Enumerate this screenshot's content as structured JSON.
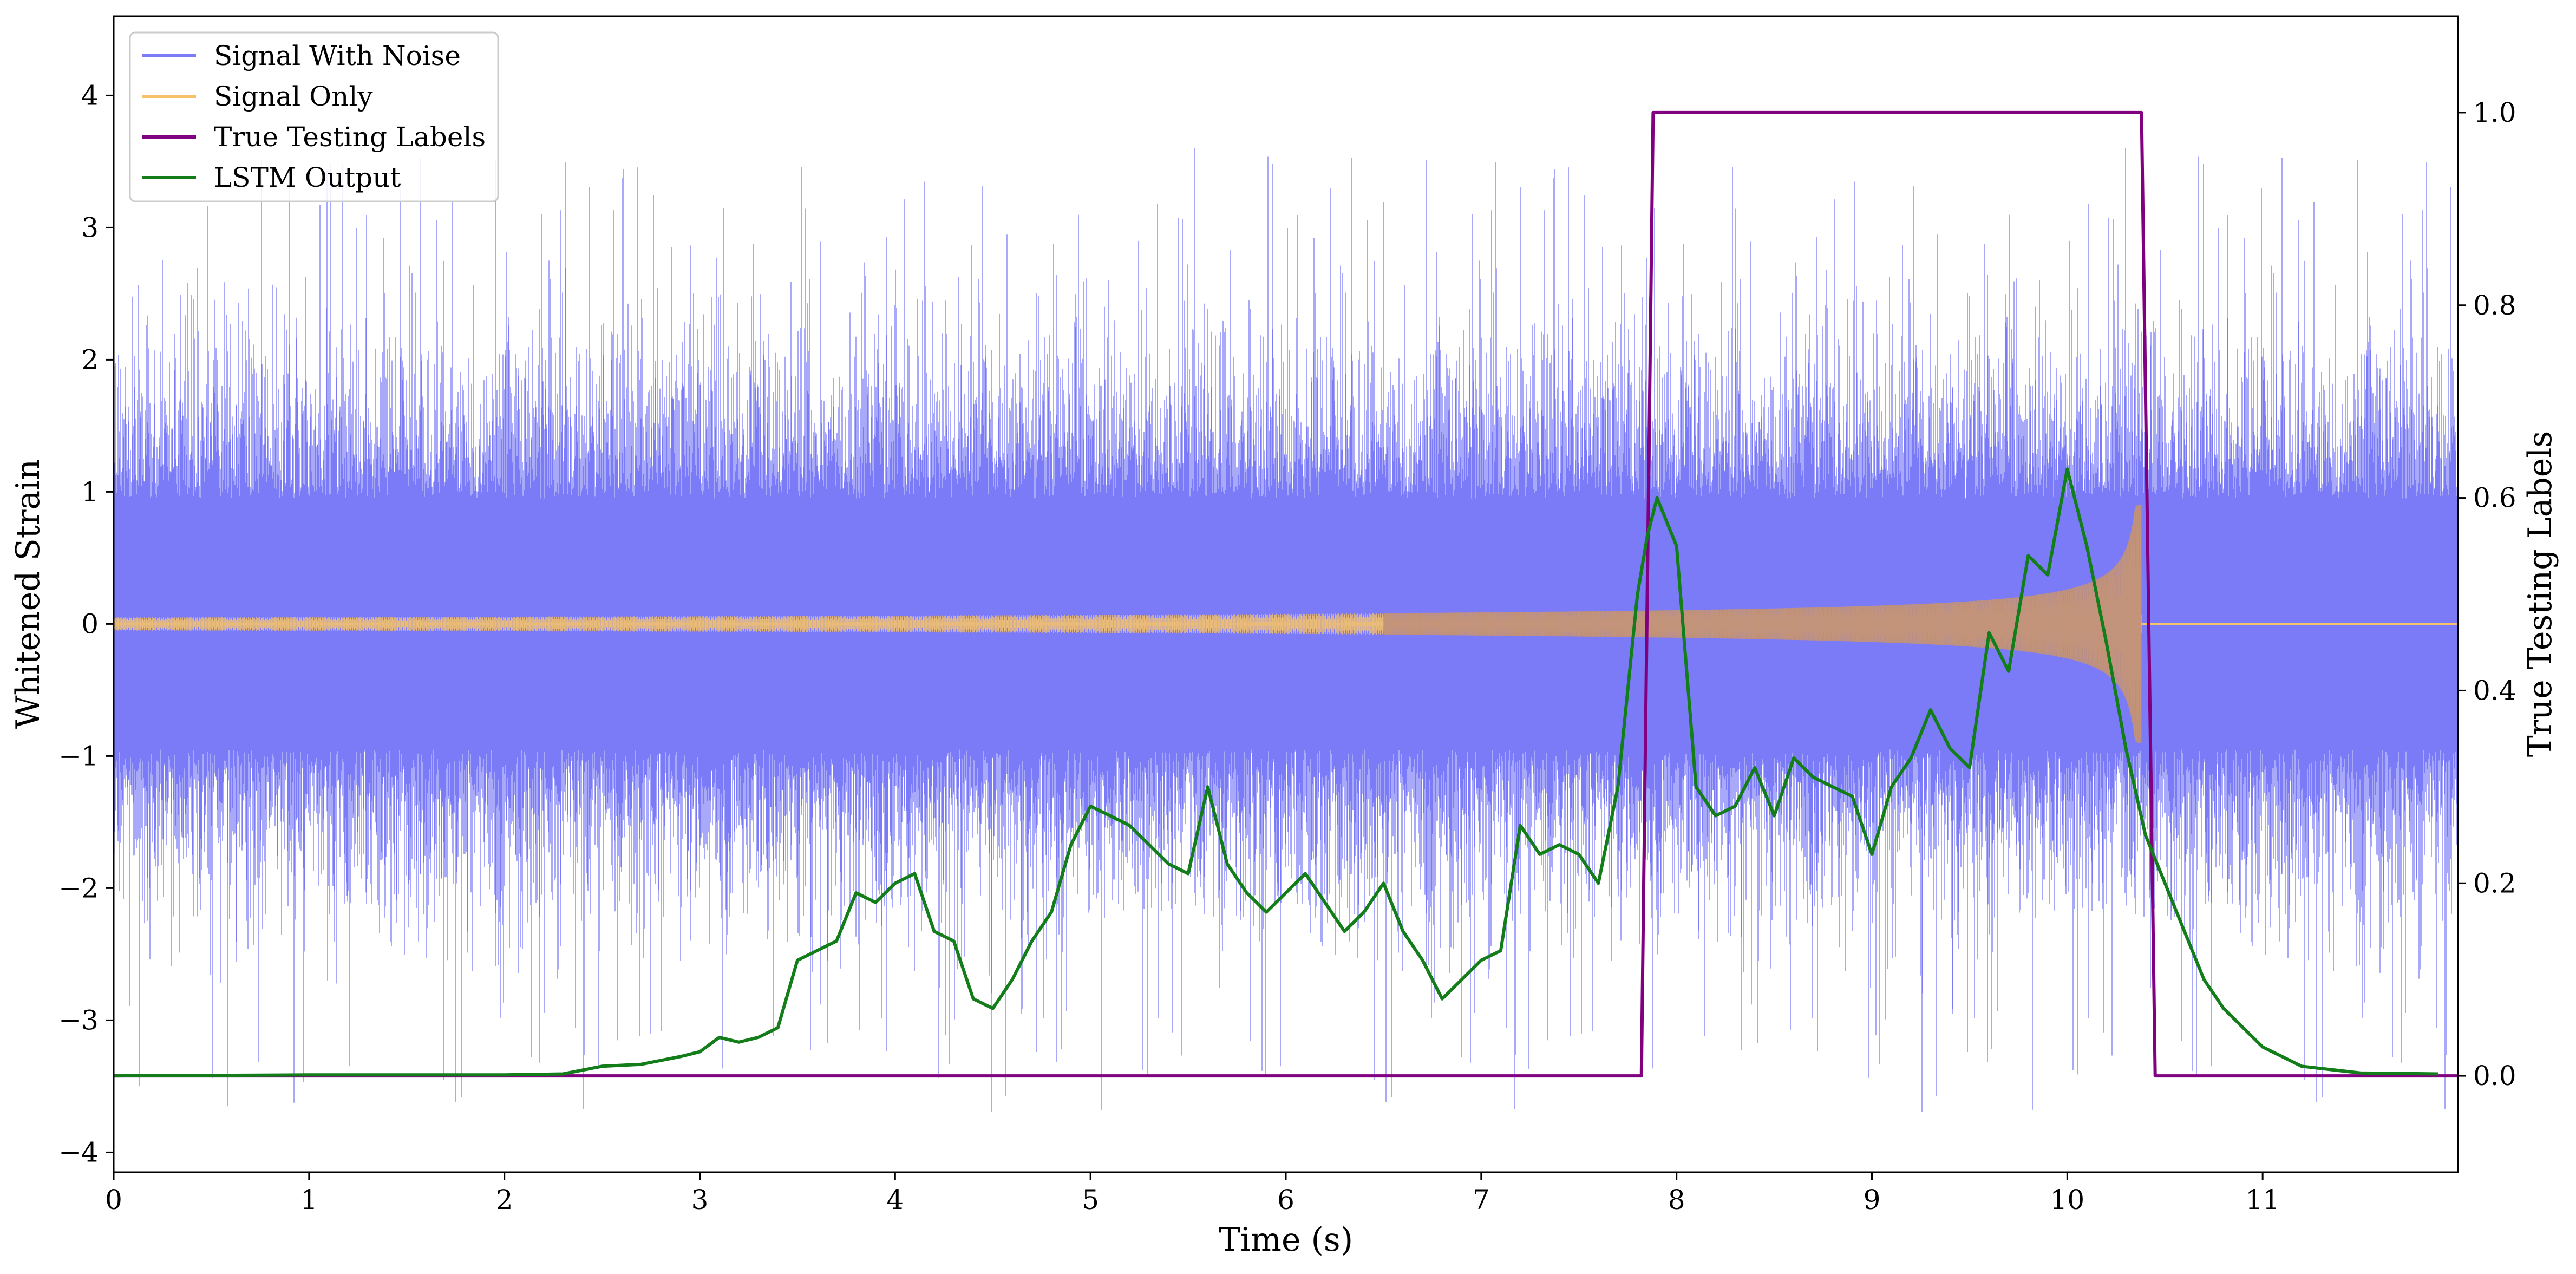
{
  "chart_data": {
    "type": "line",
    "title": "",
    "xlabel": "Time (s)",
    "ylabel": "Whitened Strain",
    "y2label": "True Testing Labels",
    "xlim": [
      0,
      12
    ],
    "ylim": [
      -4.15,
      4.6
    ],
    "y2lim": [
      -0.1,
      1.1
    ],
    "xticks": [
      0,
      1,
      2,
      3,
      4,
      5,
      6,
      7,
      8,
      9,
      10,
      11
    ],
    "yticks": [
      -4,
      -3,
      -2,
      -1,
      0,
      1,
      2,
      3,
      4
    ],
    "y2ticks": [
      0.0,
      0.2,
      0.4,
      0.6,
      0.8,
      1.0
    ],
    "grid": false,
    "legend": "top-left",
    "series": [
      {
        "name": "Signal With Noise",
        "axis": "left",
        "color": "#7b7bf7",
        "approx_envelope": {
          "typical_amplitude": 1.6,
          "spike_max": 3.6,
          "spike_min": -3.7
        }
      },
      {
        "name": "Signal Only",
        "axis": "left",
        "color": "#f5c26b",
        "chirp": {
          "start_time": 0.0,
          "merger_time": 10.38,
          "initial_amplitude": 0.05,
          "peak_amplitude": 0.9
        }
      },
      {
        "name": "True Testing Labels",
        "axis": "right",
        "color": "#800080",
        "x": [
          0,
          7.82,
          7.88,
          10.38,
          10.45,
          12
        ],
        "y": [
          0,
          0,
          1,
          1,
          0,
          0
        ]
      },
      {
        "name": "LSTM Output",
        "axis": "right",
        "color": "#137d1a",
        "x": [
          0,
          1,
          2,
          2.3,
          2.5,
          2.7,
          2.9,
          3.0,
          3.1,
          3.2,
          3.3,
          3.4,
          3.5,
          3.6,
          3.7,
          3.8,
          3.9,
          4.0,
          4.1,
          4.2,
          4.3,
          4.4,
          4.5,
          4.6,
          4.7,
          4.8,
          4.9,
          5.0,
          5.1,
          5.2,
          5.3,
          5.4,
          5.5,
          5.6,
          5.7,
          5.8,
          5.9,
          6.0,
          6.1,
          6.2,
          6.3,
          6.4,
          6.5,
          6.6,
          6.7,
          6.8,
          6.9,
          7.0,
          7.1,
          7.2,
          7.3,
          7.4,
          7.5,
          7.6,
          7.7,
          7.8,
          7.85,
          7.9,
          8.0,
          8.1,
          8.2,
          8.3,
          8.4,
          8.5,
          8.6,
          8.7,
          8.8,
          8.9,
          9.0,
          9.1,
          9.2,
          9.3,
          9.4,
          9.5,
          9.6,
          9.7,
          9.8,
          9.9,
          10.0,
          10.1,
          10.2,
          10.3,
          10.4,
          10.5,
          10.6,
          10.7,
          10.8,
          11.0,
          11.2,
          11.5,
          11.9
        ],
        "y": [
          0.0,
          0.001,
          0.001,
          0.002,
          0.01,
          0.012,
          0.02,
          0.025,
          0.04,
          0.035,
          0.04,
          0.05,
          0.12,
          0.13,
          0.14,
          0.19,
          0.18,
          0.2,
          0.21,
          0.15,
          0.14,
          0.08,
          0.07,
          0.1,
          0.14,
          0.17,
          0.24,
          0.28,
          0.27,
          0.26,
          0.24,
          0.22,
          0.21,
          0.3,
          0.22,
          0.19,
          0.17,
          0.19,
          0.21,
          0.18,
          0.15,
          0.17,
          0.2,
          0.15,
          0.12,
          0.08,
          0.1,
          0.12,
          0.13,
          0.26,
          0.23,
          0.24,
          0.23,
          0.2,
          0.3,
          0.5,
          0.56,
          0.6,
          0.55,
          0.3,
          0.27,
          0.28,
          0.32,
          0.27,
          0.33,
          0.31,
          0.3,
          0.29,
          0.23,
          0.3,
          0.33,
          0.38,
          0.34,
          0.32,
          0.46,
          0.42,
          0.54,
          0.52,
          0.63,
          0.55,
          0.45,
          0.34,
          0.25,
          0.2,
          0.15,
          0.1,
          0.07,
          0.03,
          0.01,
          0.003,
          0.002
        ]
      }
    ]
  }
}
